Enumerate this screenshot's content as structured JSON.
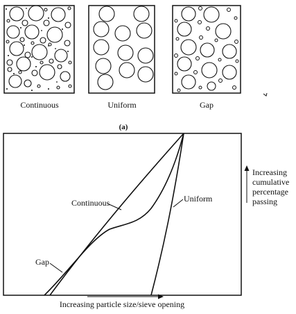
{
  "panel_a": {
    "label": "(a)",
    "boxes": [
      {
        "id": "continuous",
        "label": "Continuous"
      },
      {
        "id": "uniform",
        "label": "Uniform"
      },
      {
        "id": "gap",
        "label": "Gap"
      }
    ]
  },
  "panel_b": {
    "x_axis_label": "Increasing particle size/sieve opening",
    "y_axis_label_lines": [
      "Increasing",
      "cumulative",
      "percentage",
      "passing"
    ],
    "curve_labels": {
      "continuous": "Continuous",
      "uniform": "Uniform",
      "gap": "Gap"
    }
  }
}
